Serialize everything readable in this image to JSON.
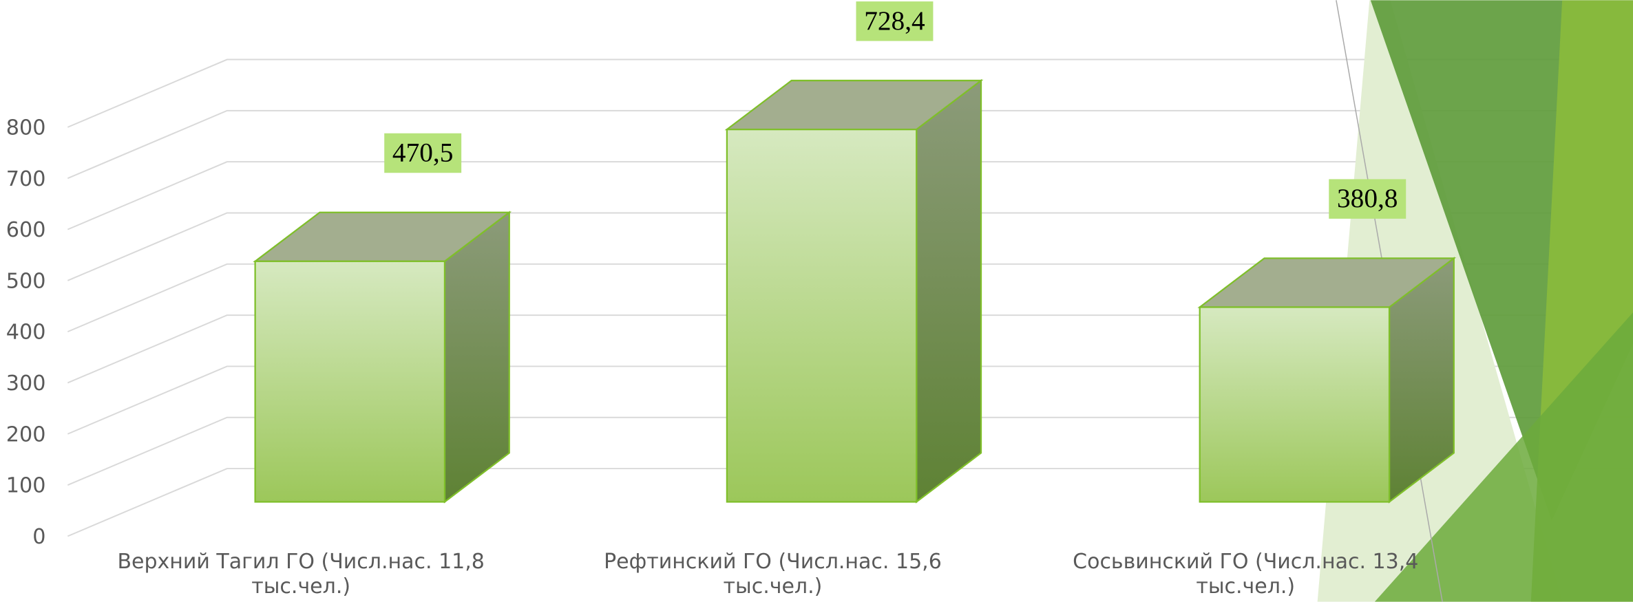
{
  "chart_data": {
    "type": "bar3d",
    "categories": [
      "Верхний Тагил ГО (Числ.нас. 11,8 тыс.чел.)",
      "Рефтинский ГО (Числ.нас. 15,6 тыс.чел.)",
      "Сосьвинский ГО (Числ.нас. 13,4 тыс.чел.)"
    ],
    "values": [
      470.5,
      728.4,
      380.8
    ],
    "value_labels": [
      "470,5",
      "728,4",
      "380,8"
    ],
    "ylim": [
      0,
      800
    ],
    "yticks": [
      0,
      100,
      200,
      300,
      400,
      500,
      600,
      700,
      800
    ],
    "grid": true
  }
}
